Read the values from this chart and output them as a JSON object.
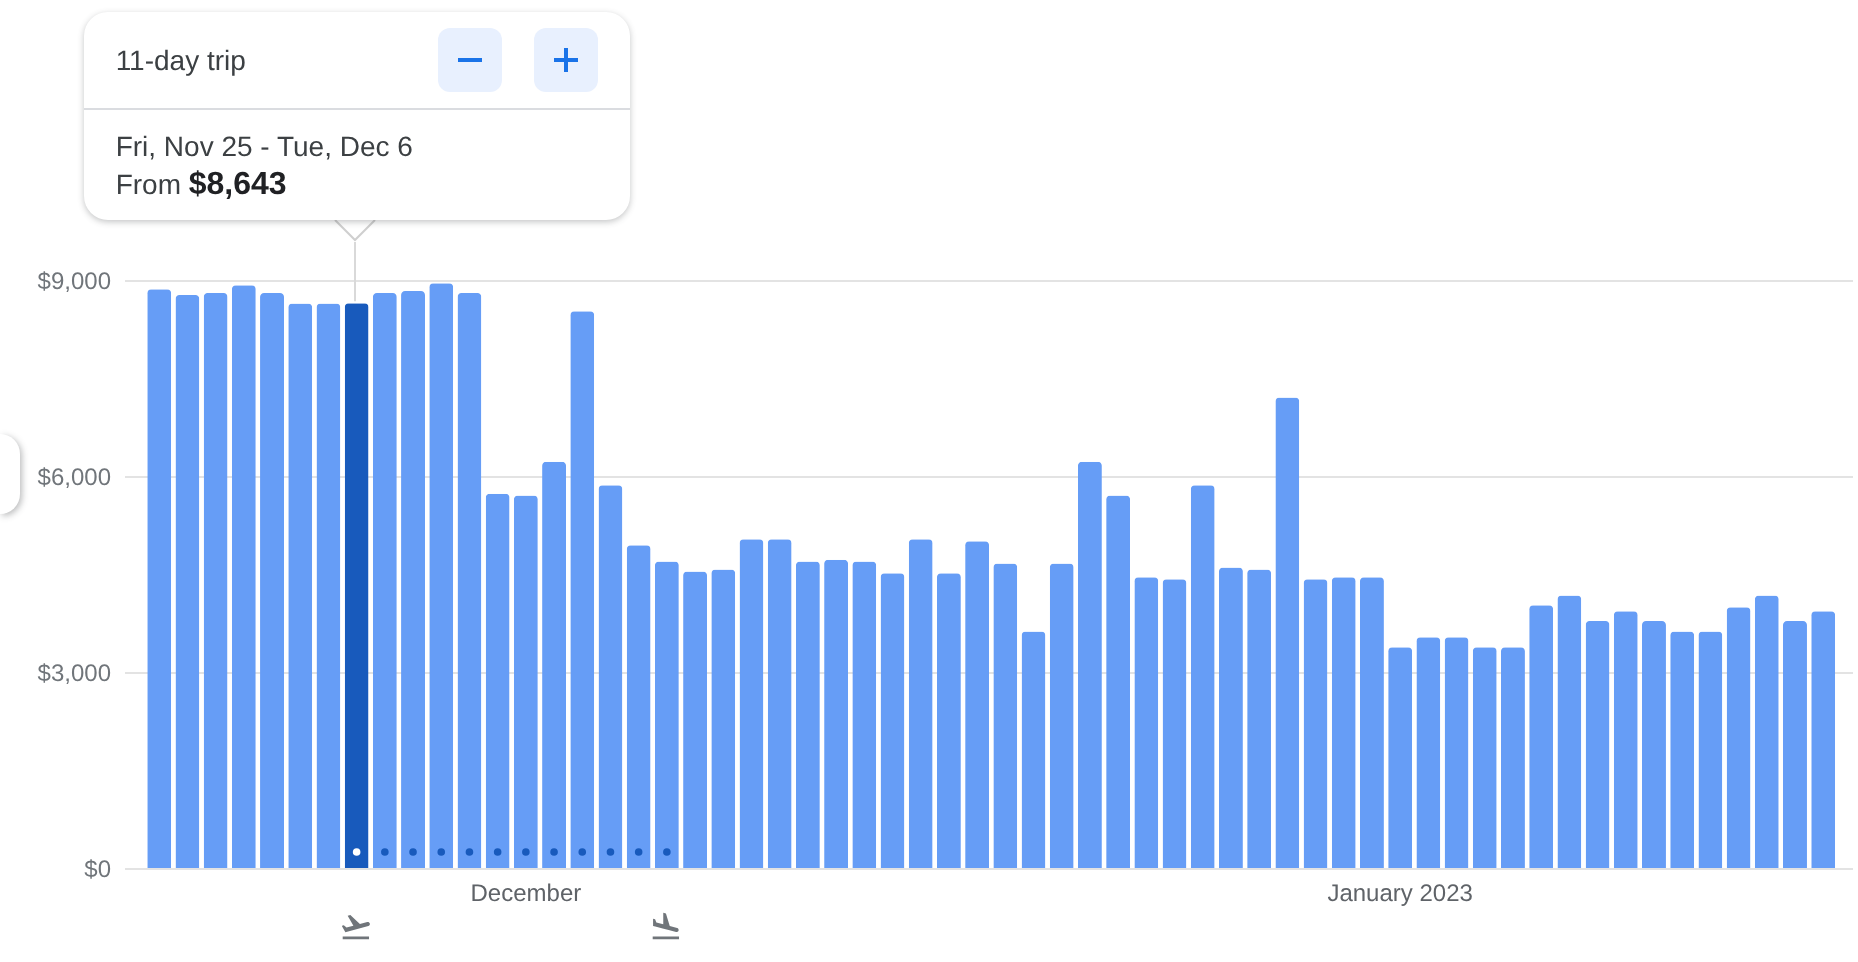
{
  "chart_data": {
    "type": "bar",
    "categories": [
      null,
      null,
      null,
      null,
      null,
      null,
      null,
      null,
      null,
      null,
      null,
      null,
      null,
      "December",
      null,
      null,
      null,
      null,
      null,
      null,
      null,
      null,
      null,
      null,
      null,
      null,
      null,
      null,
      null,
      null,
      null,
      null,
      null,
      null,
      null,
      null,
      null,
      null,
      null,
      null,
      null,
      null,
      null,
      null,
      "January 2023",
      null,
      null,
      null,
      null,
      null,
      null,
      null,
      null,
      null,
      null,
      null,
      null,
      null,
      null,
      null
    ],
    "values": [
      8860,
      8770,
      8800,
      8920,
      8800,
      8640,
      8640,
      8643,
      8800,
      8830,
      8950,
      8800,
      5730,
      5700,
      6220,
      8520,
      5860,
      4940,
      4690,
      4540,
      4570,
      5030,
      5030,
      4690,
      4720,
      4690,
      4510,
      5030,
      4510,
      5000,
      4660,
      3620,
      4660,
      6220,
      5700,
      4450,
      4420,
      5860,
      4600,
      4570,
      7200,
      4420,
      4450,
      4450,
      3380,
      3530,
      3530,
      3380,
      3380,
      4020,
      4170,
      3780,
      3930,
      3780,
      3620,
      3620,
      3990,
      4170,
      3780,
      3930
    ],
    "colors": [
      "#669df6",
      "#669df6",
      "#669df6",
      "#669df6",
      "#669df6",
      "#669df6",
      "#669df6",
      "#185abc",
      "#669df6",
      "#669df6",
      "#669df6",
      "#669df6",
      "#669df6",
      "#669df6",
      "#669df6",
      "#669df6",
      "#669df6",
      "#669df6",
      "#669df6",
      "#669df6",
      "#669df6",
      "#669df6",
      "#669df6",
      "#669df6",
      "#669df6",
      "#669df6",
      "#669df6",
      "#669df6",
      "#669df6",
      "#669df6",
      "#669df6",
      "#669df6",
      "#669df6",
      "#669df6",
      "#669df6",
      "#669df6",
      "#669df6",
      "#669df6",
      "#669df6",
      "#669df6",
      "#669df6",
      "#669df6",
      "#669df6",
      "#669df6",
      "#669df6",
      "#669df6",
      "#669df6",
      "#669df6",
      "#669df6",
      "#669df6",
      "#669df6",
      "#669df6",
      "#669df6",
      "#669df6",
      "#669df6",
      "#669df6",
      "#669df6",
      "#669df6",
      "#669df6",
      "#669df6"
    ],
    "ylim": [
      0,
      9000
    ],
    "yticks": [
      {
        "value": 0,
        "label": "$0"
      },
      {
        "value": 3000,
        "label": "$3,000"
      },
      {
        "value": 6000,
        "label": "$6,000"
      },
      {
        "value": 9000,
        "label": "$9,000"
      }
    ],
    "grid": "y",
    "annotations": [
      "11-day trip",
      "Fri, Nov 25 - Tue, Dec 6",
      "From $8,643"
    ]
  }
}
